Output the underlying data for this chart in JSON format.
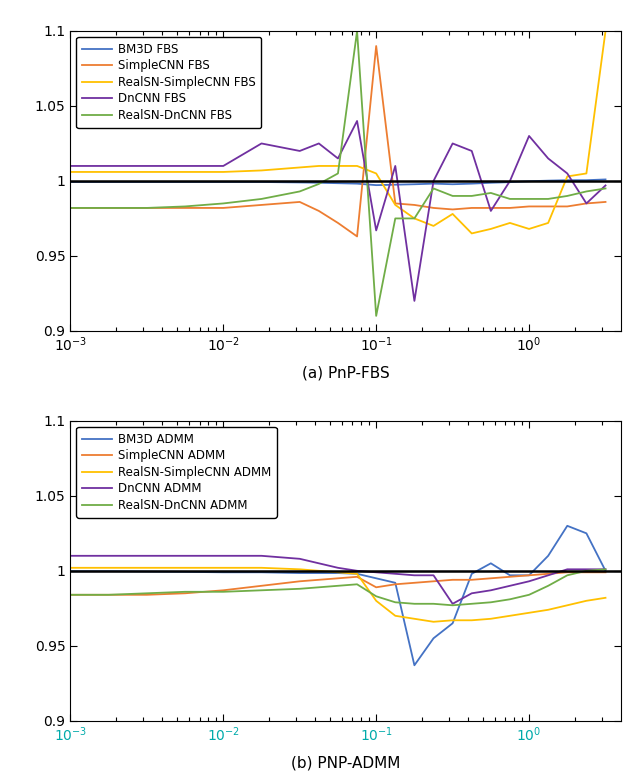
{
  "colors": {
    "BM3D": "#4472C4",
    "SimpleCNN": "#ED7D31",
    "RealSN_SimpleCNN": "#FFC000",
    "DnCNN": "#7030A0",
    "RealSN_DnCNN": "#70AD47"
  },
  "legend_fbs": [
    "BM3D FBS",
    "SimpleCNN FBS",
    "RealSN-SimpleCNN FBS",
    "DnCNN FBS",
    "RealSN-DnCNN FBS"
  ],
  "legend_admm": [
    "BM3D ADMM",
    "SimpleCNN ADMM",
    "RealSN-SimpleCNN ADMM",
    "DnCNN ADMM",
    "RealSN-DnCNN ADMM"
  ],
  "x": [
    0.001,
    0.00178,
    0.00316,
    0.00562,
    0.01,
    0.01778,
    0.03162,
    0.04217,
    0.05623,
    0.07499,
    0.1,
    0.13335,
    0.17783,
    0.23714,
    0.31623,
    0.4217,
    0.56234,
    0.74989,
    1.0,
    1.33352,
    1.77828,
    2.37137,
    3.16228
  ],
  "fbs_BM3D": [
    0.9993,
    0.9993,
    0.9993,
    0.9993,
    0.9993,
    0.9993,
    0.999,
    0.9988,
    0.9985,
    0.9982,
    0.9972,
    0.9975,
    0.9978,
    0.9982,
    0.9978,
    0.9982,
    0.9988,
    0.9992,
    0.9998,
    1.0002,
    1.0005,
    1.0005,
    1.001
  ],
  "fbs_SimpleCNN": [
    0.982,
    0.982,
    0.982,
    0.982,
    0.982,
    0.984,
    0.986,
    0.98,
    0.972,
    0.963,
    1.09,
    0.985,
    0.984,
    0.982,
    0.981,
    0.982,
    0.982,
    0.982,
    0.983,
    0.983,
    0.983,
    0.985,
    0.986
  ],
  "fbs_RealSN_SimpleCNN": [
    1.006,
    1.006,
    1.006,
    1.006,
    1.006,
    1.007,
    1.009,
    1.01,
    1.01,
    1.01,
    1.005,
    0.984,
    0.975,
    0.97,
    0.978,
    0.965,
    0.968,
    0.972,
    0.968,
    0.972,
    1.003,
    1.005,
    1.1
  ],
  "fbs_DnCNN": [
    1.01,
    1.01,
    1.01,
    1.01,
    1.01,
    1.025,
    1.02,
    1.025,
    1.015,
    1.04,
    0.967,
    1.01,
    0.92,
    1.0,
    1.025,
    1.02,
    0.98,
    1.0,
    1.03,
    1.015,
    1.005,
    0.985,
    0.997
  ],
  "fbs_RealSN_DnCNN": [
    0.982,
    0.982,
    0.982,
    0.983,
    0.985,
    0.988,
    0.993,
    0.998,
    1.005,
    1.1,
    0.91,
    0.975,
    0.975,
    0.995,
    0.99,
    0.99,
    0.992,
    0.988,
    0.988,
    0.988,
    0.99,
    0.993,
    0.995
  ],
  "admm_BM3D": [
    0.9997,
    0.9997,
    0.9995,
    0.9993,
    0.999,
    0.999,
    0.9985,
    0.9985,
    0.9985,
    0.998,
    0.995,
    0.992,
    0.937,
    0.955,
    0.965,
    0.998,
    1.005,
    0.997,
    0.997,
    1.01,
    1.03,
    1.025,
    1.0
  ],
  "admm_SimpleCNN": [
    0.984,
    0.984,
    0.984,
    0.985,
    0.987,
    0.99,
    0.993,
    0.994,
    0.995,
    0.996,
    0.989,
    0.991,
    0.992,
    0.993,
    0.994,
    0.994,
    0.995,
    0.996,
    0.997,
    0.998,
    0.999,
    0.999,
    0.999
  ],
  "admm_RealSN_SimpleCNN": [
    1.002,
    1.002,
    1.002,
    1.002,
    1.002,
    1.002,
    1.001,
    1.0,
    0.999,
    0.998,
    0.98,
    0.97,
    0.968,
    0.966,
    0.967,
    0.967,
    0.968,
    0.97,
    0.972,
    0.974,
    0.977,
    0.98,
    0.982
  ],
  "admm_DnCNN": [
    1.01,
    1.01,
    1.01,
    1.01,
    1.01,
    1.01,
    1.008,
    1.005,
    1.002,
    1.0,
    0.999,
    0.998,
    0.997,
    0.997,
    0.978,
    0.985,
    0.987,
    0.99,
    0.993,
    0.997,
    1.001,
    1.001,
    1.001
  ],
  "admm_RealSN_DnCNN": [
    0.984,
    0.984,
    0.985,
    0.986,
    0.986,
    0.987,
    0.988,
    0.989,
    0.99,
    0.991,
    0.983,
    0.979,
    0.978,
    0.978,
    0.977,
    0.978,
    0.979,
    0.981,
    0.984,
    0.99,
    0.997,
    1.0,
    1.001
  ],
  "ylim": [
    0.9,
    1.1
  ],
  "yticks": [
    0.9,
    0.95,
    1.0,
    1.05,
    1.1
  ],
  "subplot_a_title": "(a) PnP-FBS",
  "subplot_b_title": "(b) PNP-ADMM"
}
